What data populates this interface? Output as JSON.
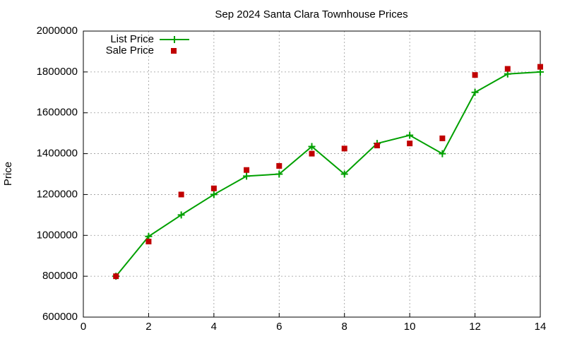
{
  "chart_data": {
    "type": "line",
    "title": "Sep 2024 Santa Clara Townhouse Prices",
    "y_label": "Price",
    "x": [
      1,
      2,
      3,
      4,
      5,
      6,
      7,
      8,
      9,
      10,
      11,
      12,
      13,
      14
    ],
    "series": [
      {
        "name": "List Price",
        "color": "#00a000",
        "style": "linespoints",
        "values": [
          800000,
          995000,
          1100000,
          1200000,
          1290000,
          1300000,
          1435000,
          1300000,
          1450000,
          1490000,
          1400000,
          1700000,
          1790000,
          1800000
        ]
      },
      {
        "name": "Sale Price",
        "color": "#c00000",
        "style": "points",
        "values": [
          800000,
          970000,
          1200000,
          1230000,
          1320000,
          1340000,
          1400000,
          1425000,
          1440000,
          1450000,
          1475000,
          1785000,
          1815000,
          1825000
        ]
      }
    ],
    "xlim": [
      0,
      14
    ],
    "xticks": [
      0,
      2,
      4,
      6,
      8,
      10,
      12,
      14
    ],
    "ylim": [
      600000,
      2000000
    ],
    "yticks": [
      600000,
      800000,
      1000000,
      1200000,
      1400000,
      1600000,
      1800000,
      2000000
    ],
    "grid": true,
    "legend": "top-left"
  }
}
